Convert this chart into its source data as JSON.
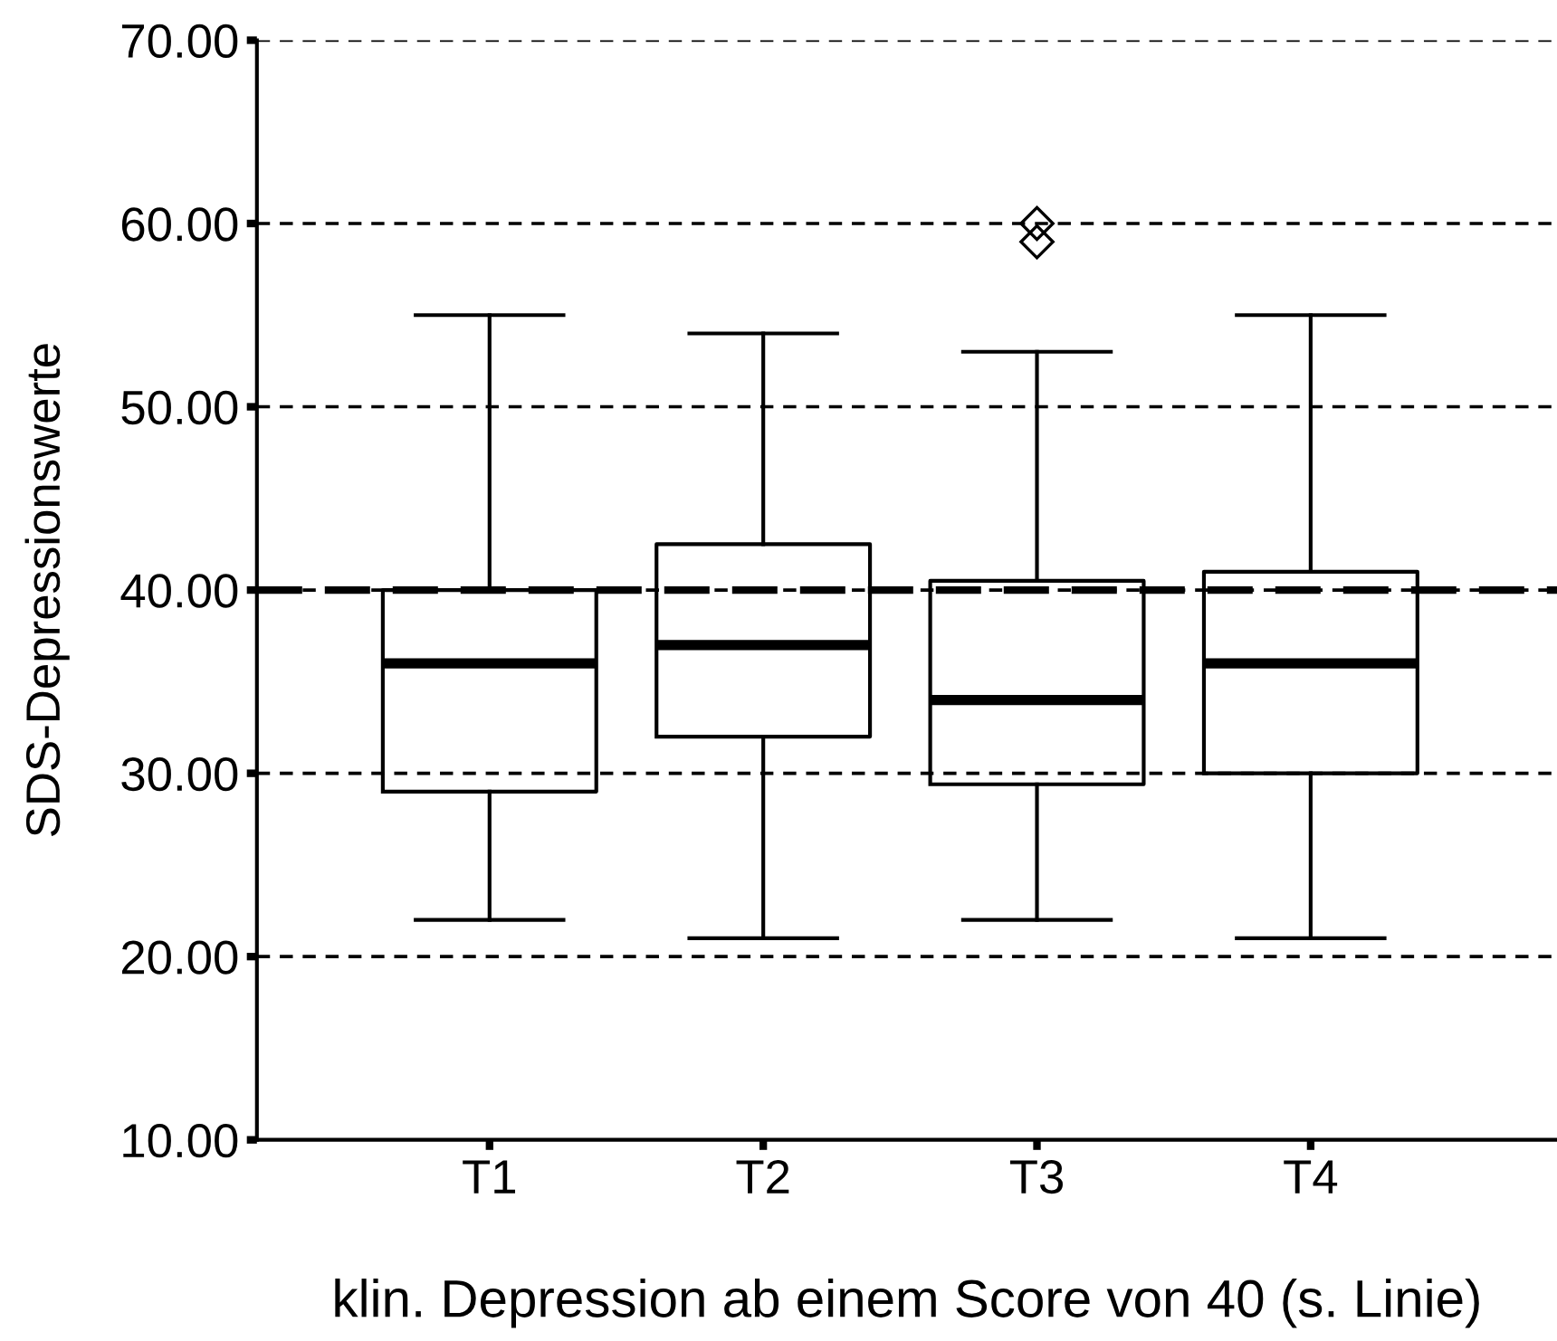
{
  "chart_data": {
    "type": "box",
    "xlabel": "klin. Depression ab einem Score von 40 (s. Linie)",
    "ylabel": "SDS-Depressionswerte",
    "categories": [
      "T1",
      "T2",
      "T3",
      "T4"
    ],
    "boxes": [
      {
        "low": 22,
        "q1": 29,
        "median": 36,
        "q3": 40,
        "high": 55
      },
      {
        "low": 21,
        "q1": 32,
        "median": 37,
        "q3": 42.5,
        "high": 54
      },
      {
        "low": 22,
        "q1": 29.4,
        "median": 34,
        "q3": 40.5,
        "high": 53,
        "outliers": [
          59,
          60
        ]
      },
      {
        "low": 21,
        "q1": 30,
        "median": 36,
        "q3": 41,
        "high": 55
      }
    ],
    "ylim": [
      10,
      70
    ],
    "yticks": [
      {
        "value": 10,
        "label": "10.00"
      },
      {
        "value": 20,
        "label": "20.00"
      },
      {
        "value": 30,
        "label": "30.00"
      },
      {
        "value": 40,
        "label": "40.00"
      },
      {
        "value": 50,
        "label": "50.00"
      },
      {
        "value": 60,
        "label": "60.00"
      },
      {
        "value": 70,
        "label": "70.00"
      }
    ],
    "grid": "y",
    "marker": "diamond",
    "ref_lines": [
      {
        "axis": "y",
        "value": 40,
        "color": "#000000",
        "line_style": "dashed"
      }
    ]
  }
}
